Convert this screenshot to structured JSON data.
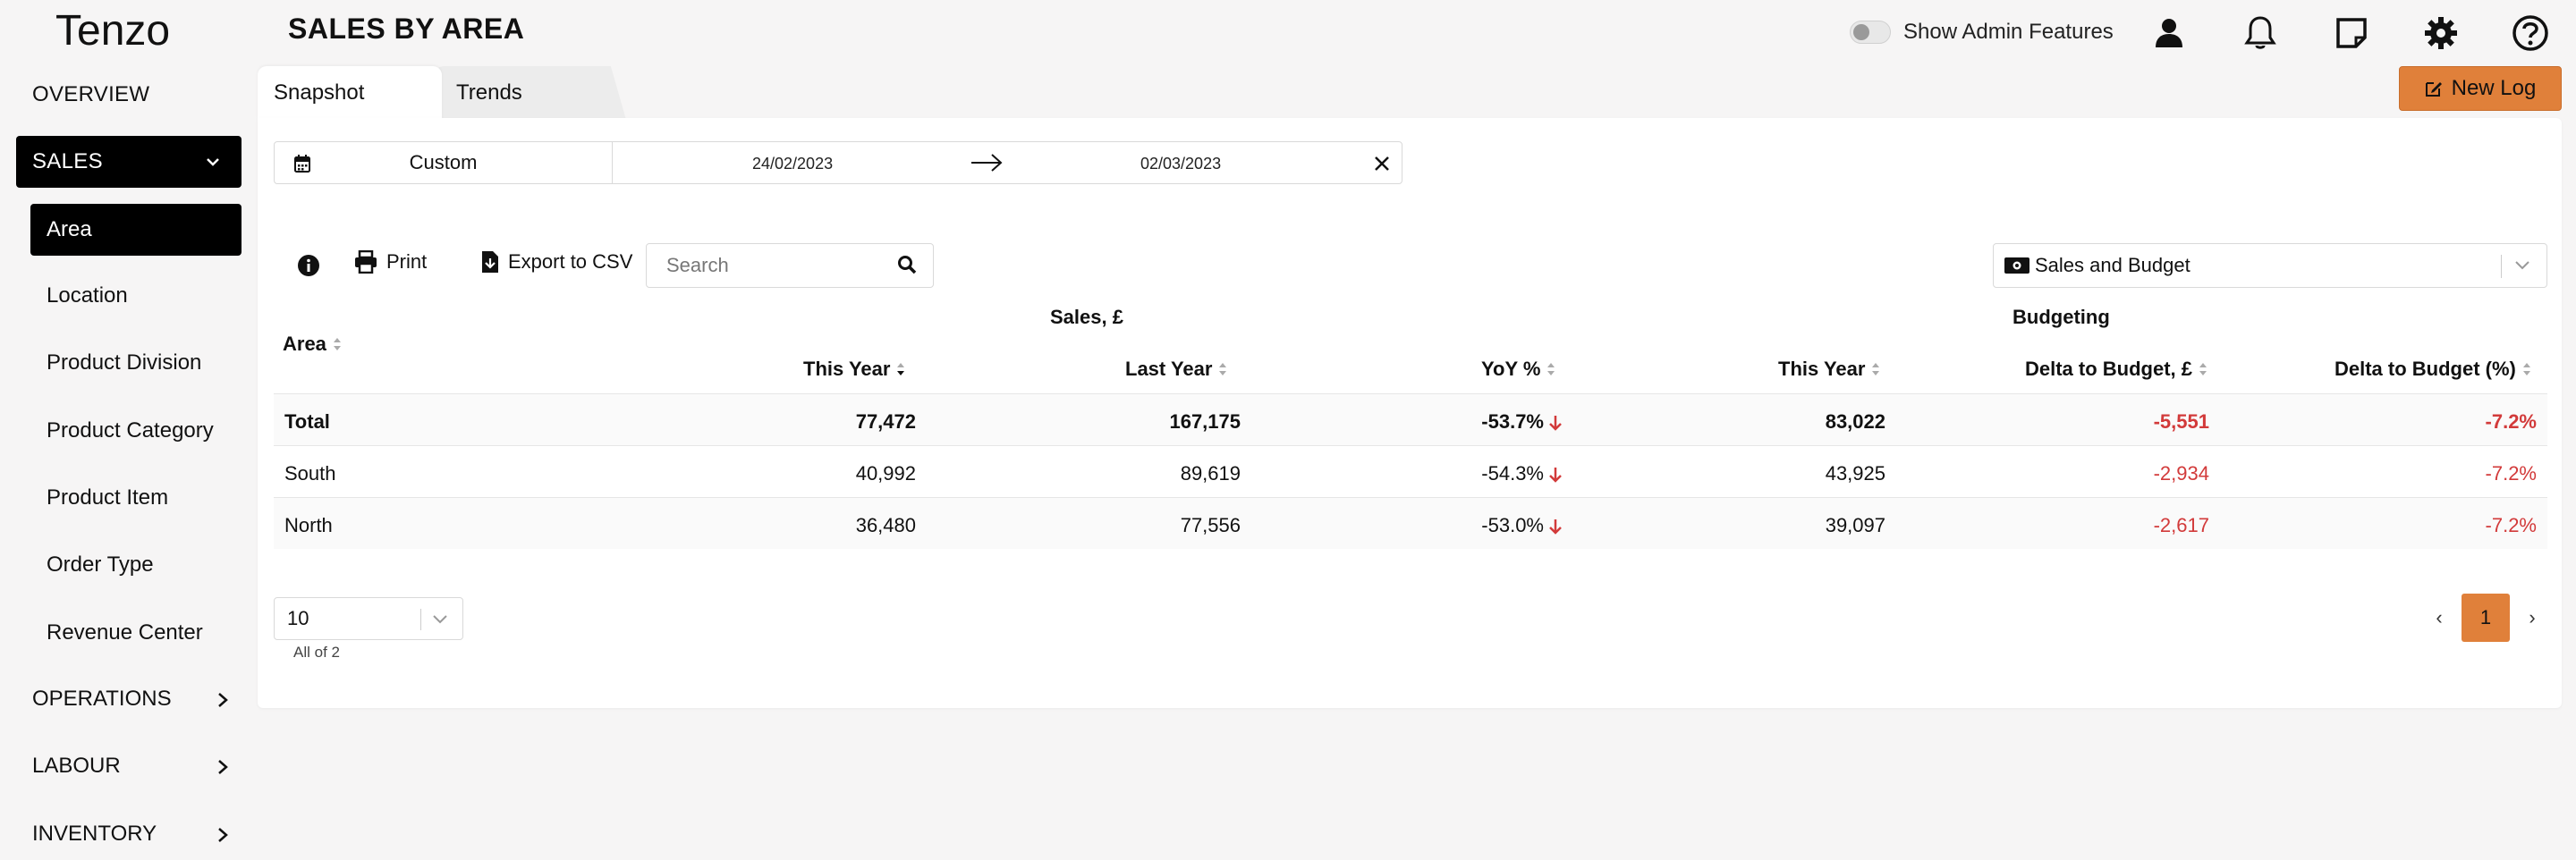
{
  "header": {
    "brand": "Tenzo",
    "title": "SALES BY AREA",
    "admin_toggle_label": "Show Admin Features"
  },
  "sidebar": {
    "items": [
      {
        "label": "OVERVIEW"
      },
      {
        "label": "SALES"
      },
      {
        "label": "OPERATIONS"
      },
      {
        "label": "LABOUR"
      },
      {
        "label": "INVENTORY"
      }
    ],
    "sales_sub": [
      {
        "label": "Area"
      },
      {
        "label": "Location"
      },
      {
        "label": "Product Division"
      },
      {
        "label": "Product Category"
      },
      {
        "label": "Product Item"
      },
      {
        "label": "Order Type"
      },
      {
        "label": "Revenue Center"
      }
    ]
  },
  "tabs": [
    {
      "label": "Snapshot"
    },
    {
      "label": "Trends"
    }
  ],
  "new_log_label": "New Log",
  "date_filter": {
    "type": "Custom",
    "start": "24/02/2023",
    "end": "02/03/2023"
  },
  "toolbar": {
    "print_label": "Print",
    "export_label": "Export to CSV",
    "search_placeholder": "Search",
    "view_select": "Sales and Budget"
  },
  "table": {
    "groups": {
      "sales": "Sales, £",
      "budget": "Budgeting"
    },
    "columns": {
      "area": "Area",
      "this_year": "This Year",
      "last_year": "Last Year",
      "yoy": "YoY %",
      "budget_this_year": "This Year",
      "delta": "Delta to Budget, £",
      "delta_pct": "Delta to Budget (%)"
    },
    "rows": [
      {
        "area": "Total",
        "this_year": "77,472",
        "last_year": "167,175",
        "yoy": "-53.7%",
        "budget": "83,022",
        "delta": "-5,551",
        "delta_pct": "-7.2%"
      },
      {
        "area": "South",
        "this_year": "40,992",
        "last_year": "89,619",
        "yoy": "-54.3%",
        "budget": "43,925",
        "delta": "-2,934",
        "delta_pct": "-7.2%"
      },
      {
        "area": "North",
        "this_year": "36,480",
        "last_year": "77,556",
        "yoy": "-53.0%",
        "budget": "39,097",
        "delta": "-2,617",
        "delta_pct": "-7.2%"
      }
    ]
  },
  "pagination": {
    "page_size": "10",
    "summary": "All of 2",
    "current_page": "1",
    "prev": "‹",
    "next": "›"
  },
  "colors": {
    "accent": "#e0803a",
    "negative": "#d23a3a",
    "active_nav": "#000000"
  }
}
